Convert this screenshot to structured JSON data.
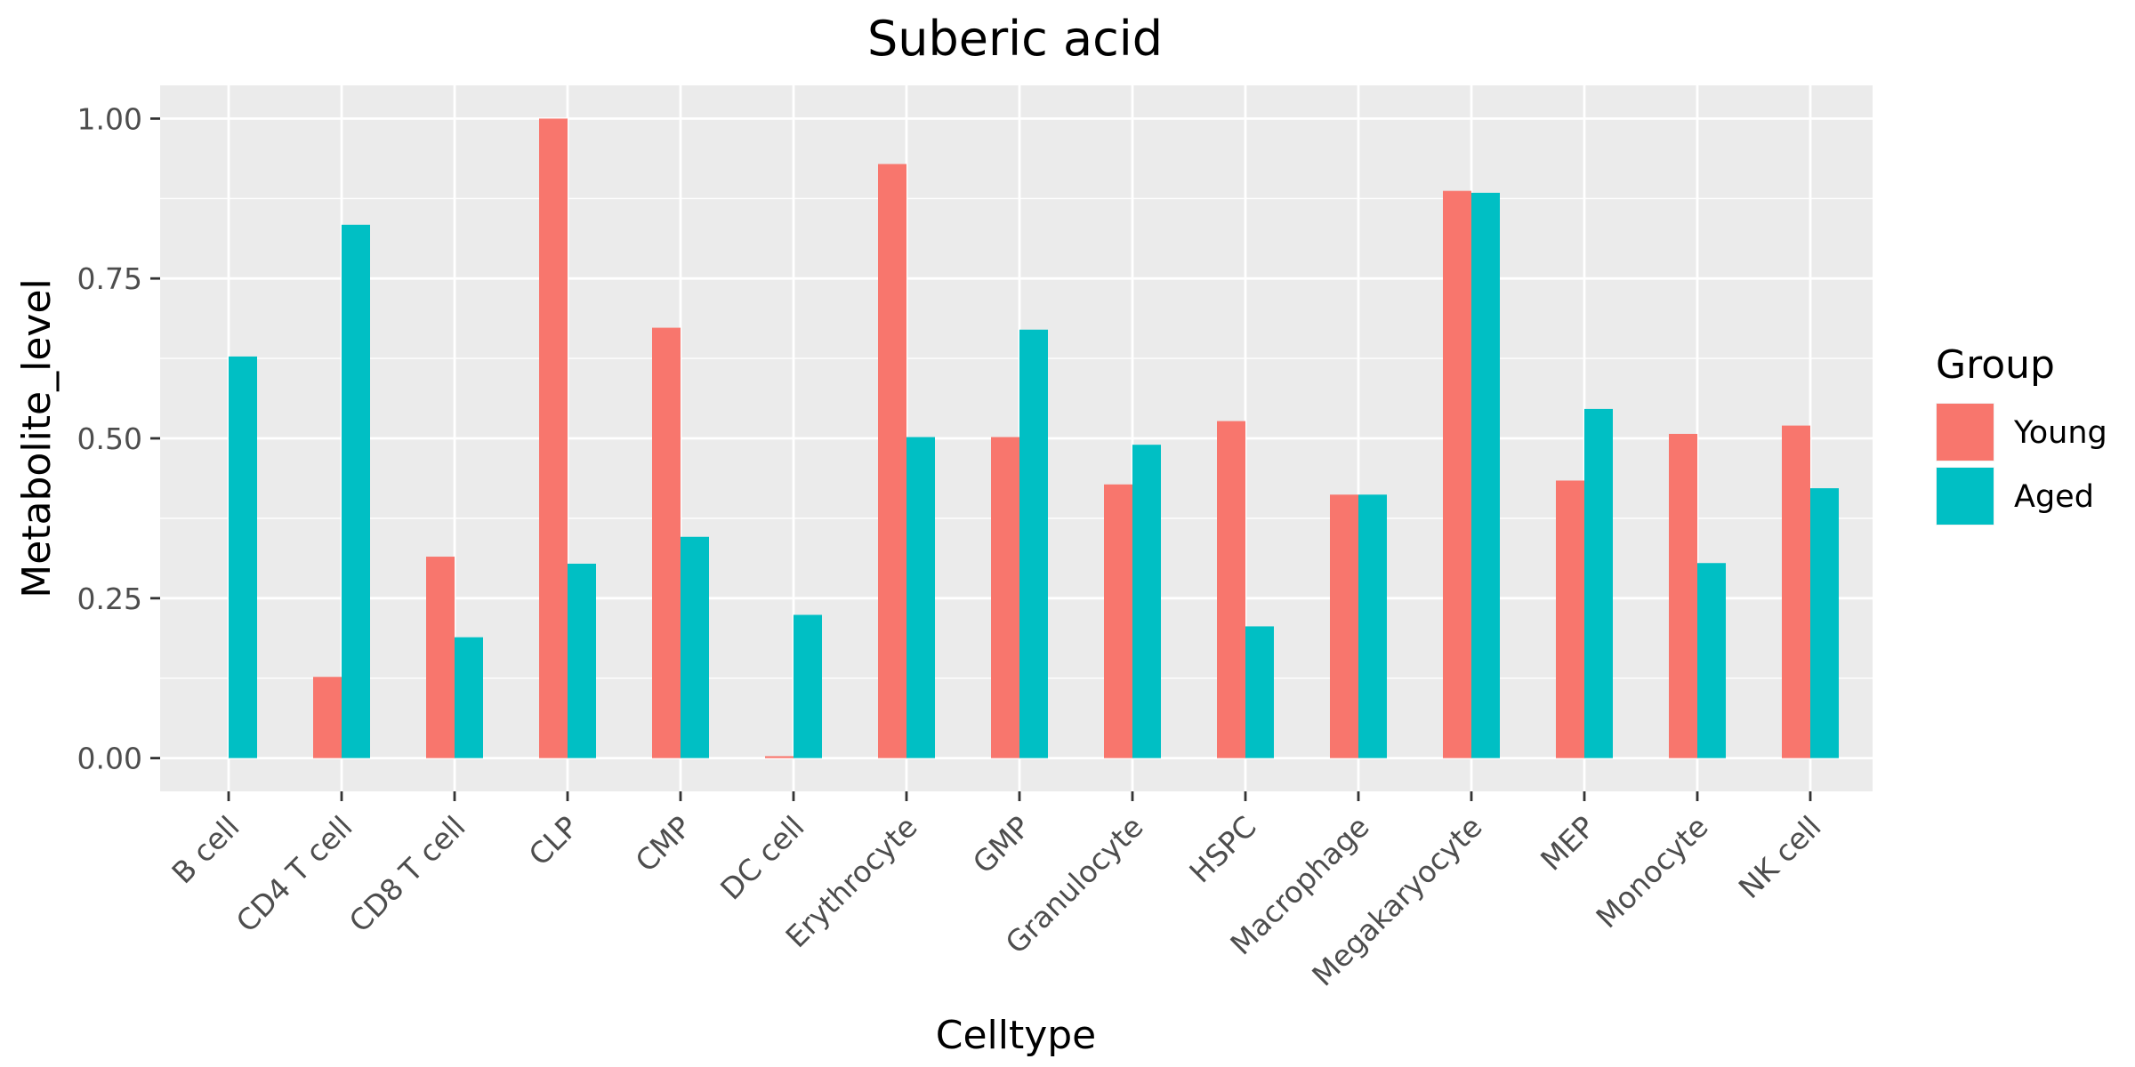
{
  "chart_data": {
    "type": "bar",
    "title": "Suberic acid",
    "xlabel": "Celltype",
    "ylabel": "Metabolite_level",
    "categories": [
      "B cell",
      "CD4 T cell",
      "CD8 T cell",
      "CLP",
      "CMP",
      "DC cell",
      "Erythrocyte",
      "GMP",
      "Granulocyte",
      "HSPC",
      "Macrophage",
      "Megakaryocyte",
      "MEP",
      "Monocyte",
      "NK cell"
    ],
    "series": [
      {
        "name": "Young",
        "color": "#F8766D",
        "values": [
          0.0,
          0.127,
          0.315,
          1.0,
          0.673,
          0.003,
          0.929,
          0.502,
          0.428,
          0.527,
          0.412,
          0.887,
          0.434,
          0.507,
          0.52
        ]
      },
      {
        "name": "Aged",
        "color": "#00BFC4",
        "values": [
          0.628,
          0.834,
          0.189,
          0.304,
          0.346,
          0.224,
          0.502,
          0.67,
          0.49,
          0.206,
          0.412,
          0.884,
          0.546,
          0.305,
          0.422
        ]
      }
    ],
    "ylim": [
      -0.052,
      1.052
    ],
    "yticks": [
      0.0,
      0.25,
      0.5,
      0.75,
      1.0
    ],
    "yticklabels": [
      "0.00",
      "0.25",
      "0.50",
      "0.75",
      "1.00"
    ],
    "grid": true,
    "legend": {
      "title": "Group",
      "placement": "right"
    },
    "panel_background": "#EBEBEB"
  }
}
